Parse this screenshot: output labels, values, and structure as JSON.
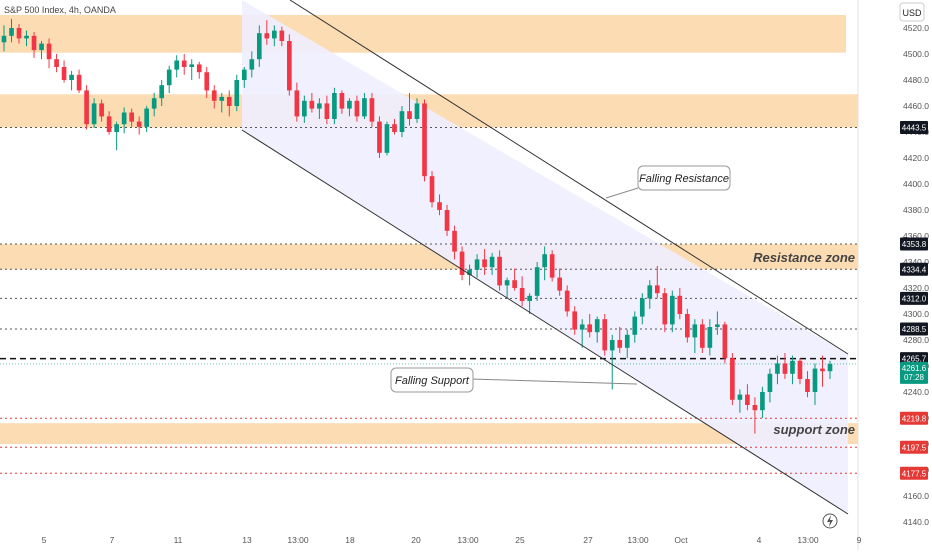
{
  "header": {
    "title": "S&P 500 Index, 4h, OANDA",
    "currency": "USD"
  },
  "colors": {
    "up": "#089981",
    "down": "#f23645",
    "zone": "#fcd7a6",
    "channel": "#eeeeff",
    "axis_text": "#555555",
    "red_level": "#e53935"
  },
  "chart_data": {
    "type": "candlestick",
    "symbol": "S&P 500 Index",
    "interval": "4h",
    "source": "OANDA",
    "ylim": [
      4135,
      4540
    ],
    "y_ticks": [
      4140,
      4160,
      4180,
      4200,
      4220,
      4240,
      4260,
      4280,
      4300,
      4320,
      4340,
      4360,
      4380,
      4400,
      4420,
      4440,
      4460,
      4480,
      4500,
      4520
    ],
    "x_ticks": [
      "5",
      "7",
      "11",
      "13",
      "13:00",
      "18",
      "20",
      "13:00",
      "25",
      "27",
      "13:00",
      "Oct",
      "4",
      "13:00",
      "9"
    ],
    "price_labels": [
      {
        "value": 4443.5,
        "text": "4443.5",
        "style": "black"
      },
      {
        "value": 4353.8,
        "text": "4353.8",
        "style": "black"
      },
      {
        "value": 4334.4,
        "text": "4334.4",
        "style": "black"
      },
      {
        "value": 4312.0,
        "text": "4312.0",
        "style": "black"
      },
      {
        "value": 4288.5,
        "text": "4288.5",
        "style": "black"
      },
      {
        "value": 4265.7,
        "text": "4265.7",
        "style": "black"
      },
      {
        "value": 4219.8,
        "text": "4219.8",
        "style": "red"
      },
      {
        "value": 4197.5,
        "text": "4197.5",
        "style": "red"
      },
      {
        "value": 4177.5,
        "text": "4177.5",
        "style": "red"
      }
    ],
    "last_price": {
      "value": 4261.6,
      "text": "4261.6",
      "countdown": "07:28"
    },
    "zones": [
      {
        "low": 4501,
        "high": 4530
      },
      {
        "low": 4443.5,
        "high": 4469
      },
      {
        "low": 4334.4,
        "high": 4353.8
      },
      {
        "low": 4200,
        "high": 4216
      }
    ],
    "zone_labels": {
      "resistance": "Resistance zone",
      "support": "support zone"
    },
    "annotations": {
      "falling_resistance": "Falling Resistance",
      "falling_support": "Falling Support"
    },
    "candles": [
      [
        4509,
        4522,
        4502,
        4514
      ],
      [
        4514,
        4527,
        4509,
        4520
      ],
      [
        4520,
        4523,
        4508,
        4512
      ],
      [
        4512,
        4518,
        4506,
        4514
      ],
      [
        4514,
        4517,
        4497,
        4503
      ],
      [
        4503,
        4510,
        4496,
        4508
      ],
      [
        4508,
        4512,
        4489,
        4496
      ],
      [
        4496,
        4500,
        4486,
        4490
      ],
      [
        4490,
        4495,
        4478,
        4480
      ],
      [
        4480,
        4487,
        4472,
        4484
      ],
      [
        4484,
        4488,
        4470,
        4472
      ],
      [
        4472,
        4476,
        4442,
        4446
      ],
      [
        4446,
        4466,
        4443,
        4462
      ],
      [
        4462,
        4465,
        4448,
        4452
      ],
      [
        4452,
        4456,
        4438,
        4440
      ],
      [
        4440,
        4448,
        4426,
        4446
      ],
      [
        4446,
        4459,
        4439,
        4455
      ],
      [
        4455,
        4458,
        4444,
        4448
      ],
      [
        4448,
        4452,
        4438,
        4444
      ],
      [
        4444,
        4460,
        4440,
        4458
      ],
      [
        4458,
        4470,
        4452,
        4466
      ],
      [
        4466,
        4480,
        4460,
        4476
      ],
      [
        4476,
        4491,
        4470,
        4488
      ],
      [
        4488,
        4499,
        4482,
        4495
      ],
      [
        4495,
        4500,
        4484,
        4490
      ],
      [
        4490,
        4496,
        4480,
        4492
      ],
      [
        4492,
        4494,
        4481,
        4486
      ],
      [
        4486,
        4490,
        4466,
        4472
      ],
      [
        4472,
        4476,
        4458,
        4464
      ],
      [
        4464,
        4470,
        4455,
        4467
      ],
      [
        4467,
        4472,
        4452,
        4460
      ],
      [
        4460,
        4484,
        4456,
        4480
      ],
      [
        4480,
        4490,
        4474,
        4488
      ],
      [
        4488,
        4502,
        4482,
        4496
      ],
      [
        4496,
        4522,
        4490,
        4516
      ],
      [
        4516,
        4526,
        4507,
        4512
      ],
      [
        4512,
        4522,
        4506,
        4518
      ],
      [
        4518,
        4521,
        4506,
        4510
      ],
      [
        4510,
        4515,
        4468,
        4472
      ],
      [
        4472,
        4478,
        4448,
        4452
      ],
      [
        4452,
        4468,
        4447,
        4464
      ],
      [
        4464,
        4470,
        4455,
        4458
      ],
      [
        4458,
        4466,
        4450,
        4462
      ],
      [
        4462,
        4468,
        4446,
        4450
      ],
      [
        4450,
        4474,
        4446,
        4470
      ],
      [
        4470,
        4472,
        4454,
        4458
      ],
      [
        4458,
        4466,
        4452,
        4464
      ],
      [
        4464,
        4468,
        4448,
        4452
      ],
      [
        4452,
        4470,
        4450,
        4466
      ],
      [
        4466,
        4470,
        4444,
        4448
      ],
      [
        4448,
        4452,
        4420,
        4424
      ],
      [
        4424,
        4448,
        4422,
        4446
      ],
      [
        4446,
        4450,
        4438,
        4440
      ],
      [
        4440,
        4460,
        4436,
        4456
      ],
      [
        4456,
        4470,
        4445,
        4450
      ],
      [
        4450,
        4466,
        4447,
        4462
      ],
      [
        4462,
        4465,
        4402,
        4406
      ],
      [
        4406,
        4410,
        4382,
        4386
      ],
      [
        4386,
        4392,
        4376,
        4380
      ],
      [
        4380,
        4384,
        4360,
        4364
      ],
      [
        4364,
        4368,
        4342,
        4348
      ],
      [
        4348,
        4352,
        4326,
        4330
      ],
      [
        4330,
        4338,
        4322,
        4334
      ],
      [
        4334,
        4346,
        4328,
        4342
      ],
      [
        4342,
        4350,
        4330,
        4336
      ],
      [
        4336,
        4347,
        4330,
        4344
      ],
      [
        4344,
        4349,
        4318,
        4322
      ],
      [
        4322,
        4328,
        4312,
        4326
      ],
      [
        4326,
        4335,
        4318,
        4320
      ],
      [
        4320,
        4329,
        4306,
        4310
      ],
      [
        4310,
        4316,
        4300,
        4314
      ],
      [
        4314,
        4340,
        4310,
        4336
      ],
      [
        4336,
        4352,
        4326,
        4346
      ],
      [
        4346,
        4349,
        4325,
        4328
      ],
      [
        4328,
        4335,
        4314,
        4318
      ],
      [
        4318,
        4322,
        4298,
        4302
      ],
      [
        4302,
        4306,
        4284,
        4288
      ],
      [
        4288,
        4296,
        4274,
        4292
      ],
      [
        4292,
        4300,
        4282,
        4286
      ],
      [
        4286,
        4298,
        4278,
        4296
      ],
      [
        4296,
        4300,
        4268,
        4272
      ],
      [
        4272,
        4284,
        4242,
        4280
      ],
      [
        4280,
        4290,
        4270,
        4274
      ],
      [
        4274,
        4288,
        4266,
        4284
      ],
      [
        4284,
        4302,
        4278,
        4298
      ],
      [
        4298,
        4316,
        4292,
        4312
      ],
      [
        4312,
        4326,
        4304,
        4322
      ],
      [
        4322,
        4337,
        4312,
        4316
      ],
      [
        4316,
        4320,
        4286,
        4292
      ],
      [
        4292,
        4318,
        4286,
        4314
      ],
      [
        4314,
        4320,
        4296,
        4300
      ],
      [
        4300,
        4304,
        4278,
        4282
      ],
      [
        4282,
        4296,
        4270,
        4292
      ],
      [
        4292,
        4296,
        4270,
        4274
      ],
      [
        4274,
        4296,
        4268,
        4290
      ],
      [
        4290,
        4302,
        4284,
        4292
      ],
      [
        4292,
        4294,
        4262,
        4266
      ],
      [
        4266,
        4270,
        4230,
        4234
      ],
      [
        4234,
        4242,
        4224,
        4238
      ],
      [
        4238,
        4246,
        4226,
        4230
      ],
      [
        4230,
        4236,
        4208,
        4226
      ],
      [
        4226,
        4244,
        4220,
        4240
      ],
      [
        4240,
        4258,
        4232,
        4254
      ],
      [
        4254,
        4268,
        4246,
        4262
      ],
      [
        4262,
        4270,
        4250,
        4254
      ],
      [
        4254,
        4268,
        4246,
        4264
      ],
      [
        4264,
        4266,
        4246,
        4250
      ],
      [
        4250,
        4256,
        4236,
        4240
      ],
      [
        4240,
        4262,
        4230,
        4258
      ],
      [
        4258,
        4268,
        4244,
        4256
      ],
      [
        4256,
        4264,
        4250,
        4261.6
      ]
    ]
  }
}
